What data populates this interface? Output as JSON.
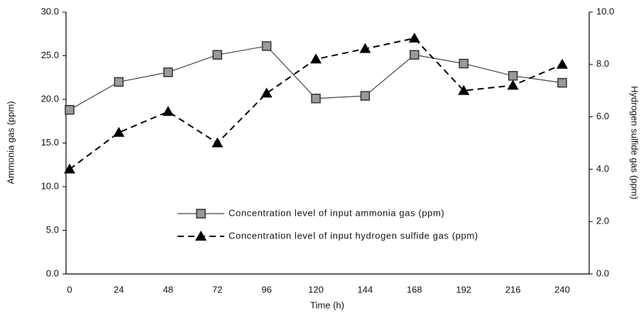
{
  "chart_data": {
    "type": "line",
    "xlabel": "Time (h)",
    "ylabel": "Ammonia gas (ppm)",
    "y2label": "Hydrogen sulfide gas (ppm)",
    "categories": [
      "0",
      "24",
      "48",
      "72",
      "96",
      "120",
      "144",
      "168",
      "192",
      "216",
      "240"
    ],
    "series": [
      {
        "name": "Concentration level of input ammonia gas (ppm)",
        "color": "#444444",
        "marker": "square",
        "dash": false,
        "values": [
          18.8,
          22.0,
          23.1,
          25.1,
          26.1,
          20.1,
          20.4,
          25.1,
          24.1,
          22.7,
          21.9
        ]
      },
      {
        "name": "Concentration level of input hydrogen sulfide gas (ppm)",
        "color": "#000000",
        "marker": "triangle",
        "dash": true,
        "axis": "y2",
        "values": [
          4.0,
          5.4,
          6.2,
          5.0,
          6.9,
          8.2,
          8.6,
          9.0,
          7.0,
          7.2,
          8.0
        ]
      }
    ],
    "ylim": [
      0,
      30
    ],
    "yticks": [
      {
        "value": 0,
        "label": "0.0"
      },
      {
        "value": 5,
        "label": "5.0"
      },
      {
        "value": 10,
        "label": "10.0"
      },
      {
        "value": 15,
        "label": "15.0"
      },
      {
        "value": 20,
        "label": "20.0"
      },
      {
        "value": 25,
        "label": "25.0"
      },
      {
        "value": 30,
        "label": "30.0"
      }
    ],
    "y2lim": [
      0,
      10
    ],
    "y2ticks": [
      {
        "value": 0,
        "label": "0.0"
      },
      {
        "value": 2,
        "label": "2.0"
      },
      {
        "value": 4,
        "label": "4.0"
      },
      {
        "value": 6,
        "label": "6.0"
      },
      {
        "value": 8,
        "label": "8.0"
      },
      {
        "value": 10,
        "label": "10.0"
      }
    ],
    "grid": false
  }
}
